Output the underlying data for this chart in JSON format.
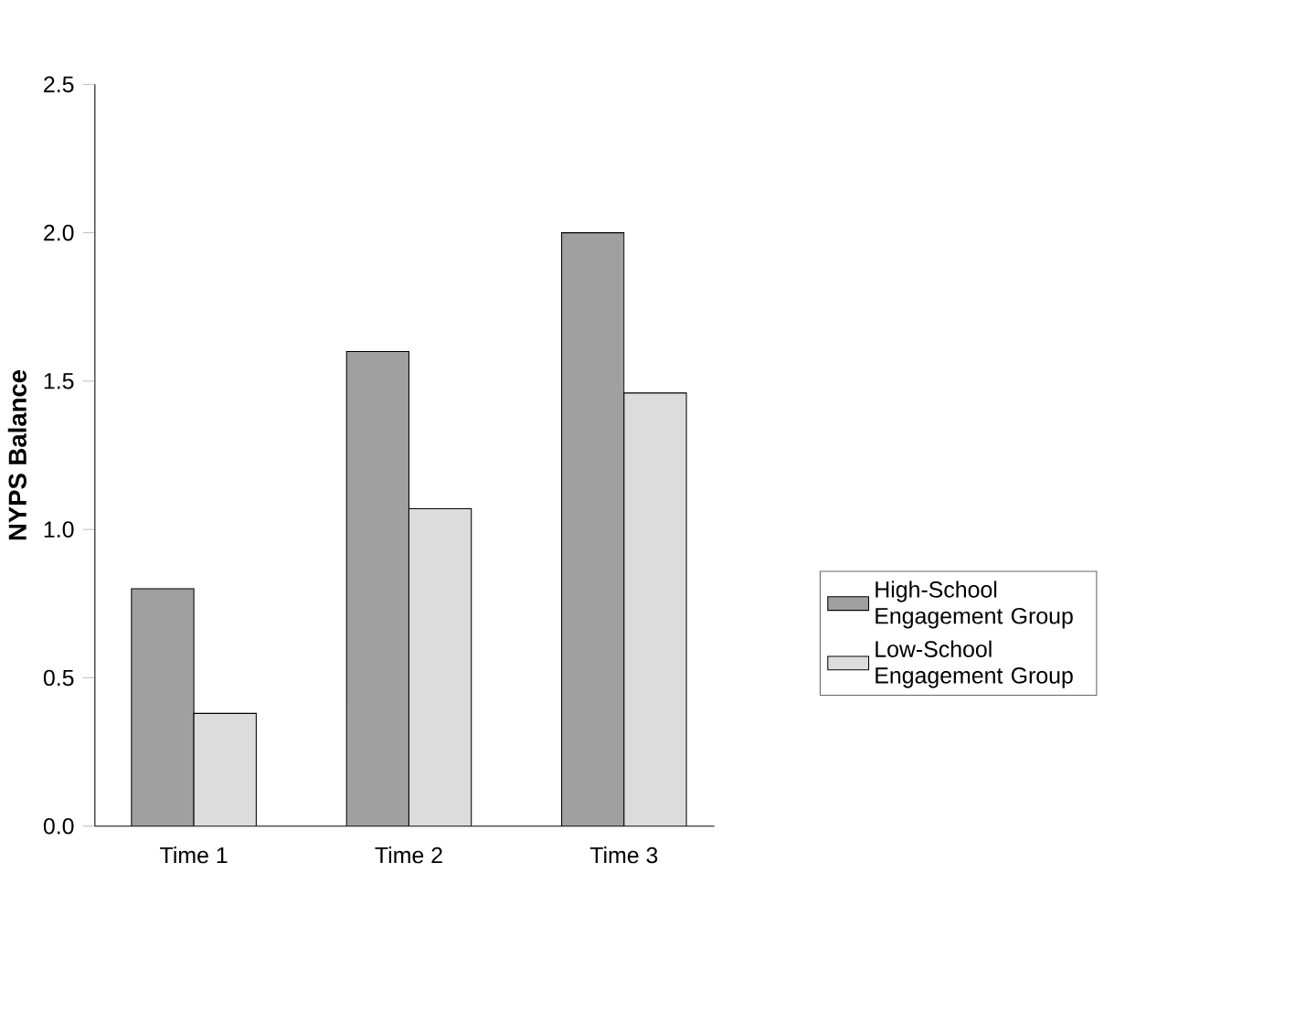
{
  "chart_data": {
    "type": "bar",
    "ylabel": "NYPS Balance",
    "categories": [
      "Time 1",
      "Time 2",
      "Time 3"
    ],
    "series": [
      {
        "name": "High-School Engagement Group",
        "color": "#a0a0a0",
        "values": [
          0.8,
          1.6,
          2.0
        ]
      },
      {
        "name": "Low-School Engagement Group",
        "color": "#dcdcdc",
        "values": [
          0.38,
          1.07,
          1.46
        ]
      }
    ],
    "ylim": [
      0,
      2.5
    ],
    "yticks": [
      {
        "value": 0,
        "label": "0.0"
      },
      {
        "value": 0.5,
        "label": "0.5"
      },
      {
        "value": 1,
        "label": "1.0"
      },
      {
        "value": 1.5,
        "label": "1.5"
      },
      {
        "value": 2,
        "label": "2.0"
      },
      {
        "value": 2.5,
        "label": "2.5"
      }
    ],
    "grid": false,
    "legend": "right"
  }
}
